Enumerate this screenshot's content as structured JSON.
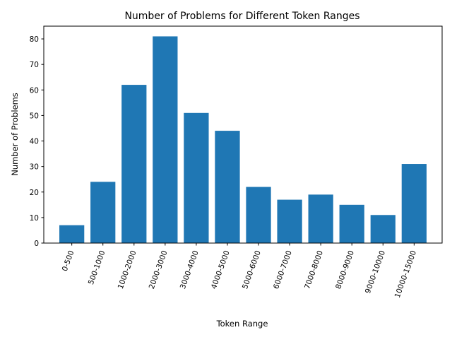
{
  "chart_data": {
    "type": "bar",
    "title": "Number of Problems for Different Token Ranges",
    "xlabel": "Token Range",
    "ylabel": "Number of Problems",
    "categories": [
      "0-500",
      "500-1000",
      "1000-2000",
      "2000-3000",
      "3000-4000",
      "4000-5000",
      "5000-6000",
      "6000-7000",
      "7000-8000",
      "8000-9000",
      "9000-10000",
      "10000-15000"
    ],
    "values": [
      7,
      24,
      62,
      81,
      51,
      44,
      22,
      17,
      19,
      15,
      11,
      31
    ],
    "ylim": [
      0,
      85
    ],
    "yticks": [
      0,
      10,
      20,
      30,
      40,
      50,
      60,
      70,
      80
    ],
    "bar_color": "#1f77b4",
    "grid": false,
    "legend": "none",
    "x_tick_rotation": "70 degrees"
  }
}
